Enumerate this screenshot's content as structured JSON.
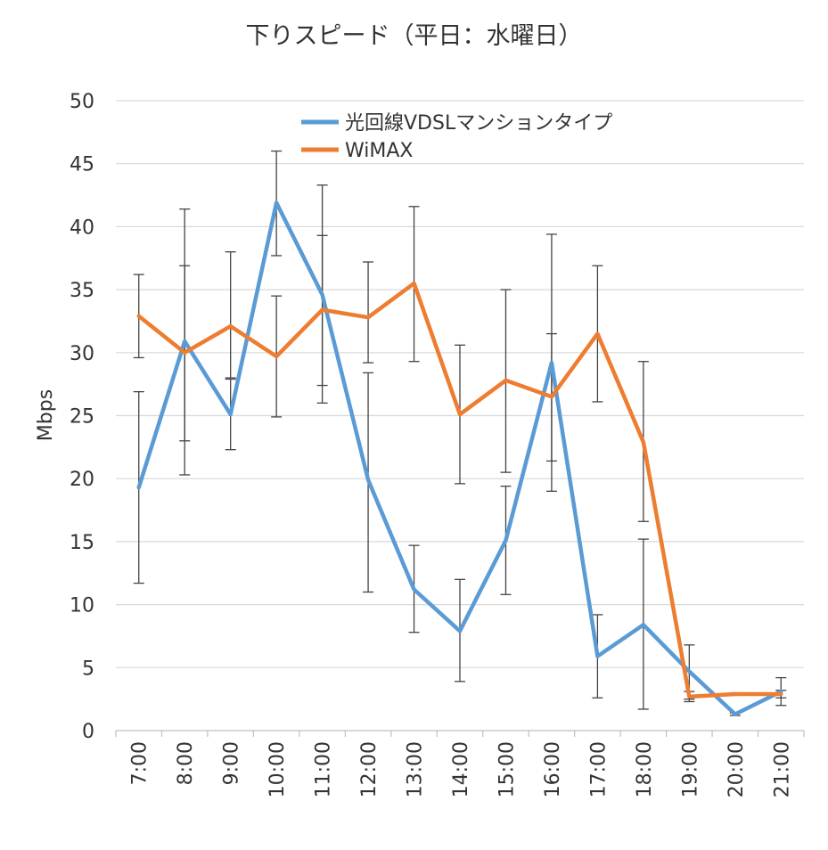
{
  "chart_data": {
    "type": "line",
    "title": "下りスピード（平日：水曜日）",
    "xlabel": "",
    "ylabel": "Mbps",
    "ylim": [
      0,
      50
    ],
    "yticks": [
      "0",
      "5",
      "10",
      "15",
      "20",
      "25",
      "30",
      "35",
      "40",
      "45",
      "50"
    ],
    "grid": true,
    "legend": "top",
    "categories": [
      "7:00",
      "8:00",
      "9:00",
      "10:00",
      "11:00",
      "12:00",
      "13:00",
      "14:00",
      "15:00",
      "16:00",
      "17:00",
      "18:00",
      "19:00",
      "20:00",
      "21:00"
    ],
    "series": [
      {
        "name": "光回線VDSLマンションタイプ",
        "color": "#5B9BD5",
        "values": [
          19.3,
          30.9,
          25.1,
          41.9,
          34.6,
          19.9,
          11.2,
          7.9,
          15.1,
          29.2,
          5.9,
          8.4,
          4.7,
          1.3,
          3.1
        ],
        "error_low": [
          11.7,
          23.0,
          22.3,
          37.7,
          26.0,
          11.0,
          7.8,
          3.9,
          10.8,
          19.0,
          2.6,
          1.7,
          2.5,
          1.2,
          2.0
        ],
        "error_high": [
          26.9,
          36.9,
          27.9,
          46.0,
          43.3,
          28.4,
          14.7,
          12.0,
          19.4,
          31.5,
          9.2,
          15.2,
          6.8,
          1.4,
          4.2
        ]
      },
      {
        "name": "WiMAX",
        "color": "#ED7D31",
        "values": [
          32.9,
          30.0,
          32.1,
          29.7,
          33.4,
          32.8,
          35.5,
          25.1,
          27.8,
          26.5,
          31.5,
          22.9,
          2.7,
          2.9,
          2.9
        ],
        "error_low": [
          29.6,
          20.3,
          28.0,
          24.9,
          27.4,
          29.2,
          29.3,
          19.6,
          20.5,
          21.4,
          26.1,
          16.6,
          2.3,
          2.8,
          2.6
        ],
        "error_high": [
          36.2,
          41.4,
          38.0,
          34.5,
          39.3,
          37.2,
          41.6,
          30.6,
          35.0,
          39.4,
          36.9,
          29.3,
          3.1,
          3.0,
          3.2
        ]
      }
    ]
  }
}
